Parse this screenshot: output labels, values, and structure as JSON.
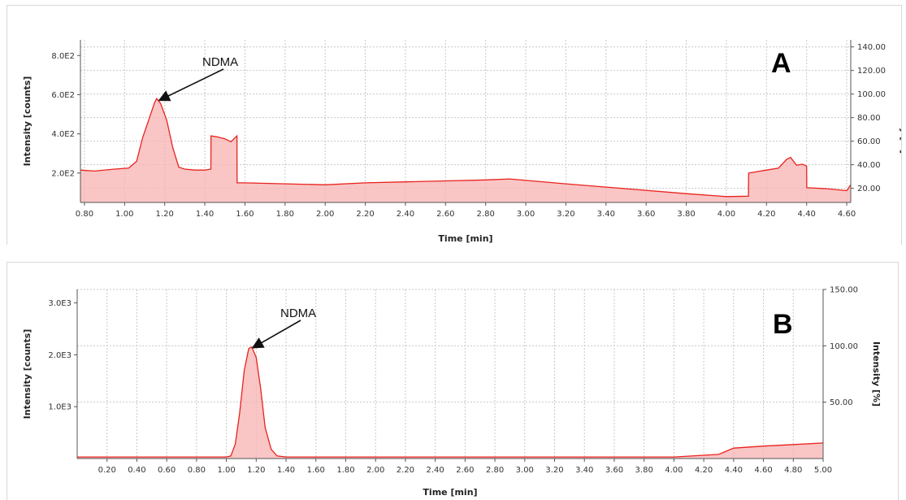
{
  "colors": {
    "trace": "#e8231e",
    "fill": "#f7b2b2",
    "grid": "#c8c8c8",
    "axis": "#555555"
  },
  "chart_data": [
    {
      "type": "area",
      "panel_label": "A",
      "annotation": "NDMA",
      "xlabel": "Time [min]",
      "ylabel_left": "Intensity [counts]",
      "ylabel_right": "Intensity [%]",
      "xlim": [
        0.78,
        4.62
      ],
      "ylim_left": [
        50,
        880
      ],
      "ylim_right": [
        8,
        146
      ],
      "x_ticks": [
        "0.80",
        "1.00",
        "1.20",
        "1.40",
        "1.60",
        "1.80",
        "2.00",
        "2.20",
        "2.40",
        "2.60",
        "2.80",
        "3.00",
        "3.20",
        "3.40",
        "3.60",
        "3.80",
        "4.00",
        "4.20",
        "4.40",
        "4.60"
      ],
      "y_left_ticks": [
        "2.0E2",
        "4.0E2",
        "6.0E2",
        "8.0E2"
      ],
      "y_right_ticks": [
        "20.00",
        "40.00",
        "60.00",
        "80.00",
        "100.00",
        "120.00",
        "140.00"
      ],
      "grid": true,
      "annotation_point": {
        "x": 1.16,
        "y": 575
      },
      "x": [
        0.78,
        0.85,
        0.95,
        1.02,
        1.06,
        1.09,
        1.12,
        1.15,
        1.16,
        1.18,
        1.21,
        1.24,
        1.27,
        1.3,
        1.35,
        1.4,
        1.43,
        1.431,
        1.46,
        1.5,
        1.53,
        1.56,
        1.561,
        1.6,
        1.8,
        2.0,
        2.2,
        2.4,
        2.6,
        2.8,
        2.92,
        3.2,
        3.5,
        3.8,
        4.0,
        4.11,
        4.111,
        4.2,
        4.26,
        4.3,
        4.32,
        4.35,
        4.38,
        4.4,
        4.401,
        4.5,
        4.6,
        4.62
      ],
      "y": [
        215,
        210,
        220,
        225,
        260,
        380,
        470,
        560,
        580,
        555,
        470,
        330,
        230,
        220,
        215,
        215,
        220,
        390,
        385,
        375,
        360,
        390,
        150,
        150,
        145,
        140,
        150,
        155,
        160,
        165,
        170,
        145,
        120,
        95,
        80,
        82,
        200,
        215,
        225,
        270,
        280,
        240,
        245,
        235,
        125,
        120,
        110,
        140
      ]
    },
    {
      "type": "area",
      "panel_label": "B",
      "annotation": "NDMA",
      "xlabel": "Time [min]",
      "ylabel_left": "Intensity [counts]",
      "ylabel_right": "Intensity [%]",
      "xlim": [
        0.0,
        5.0
      ],
      "ylim_left": [
        0,
        3260
      ],
      "ylim_right": [
        0,
        150
      ],
      "x_ticks": [
        "0.20",
        "0.40",
        "0.60",
        "0.80",
        "1.00",
        "1.20",
        "1.40",
        "1.60",
        "1.80",
        "2.00",
        "2.20",
        "2.40",
        "2.60",
        "2.80",
        "3.00",
        "3.20",
        "3.40",
        "3.60",
        "3.80",
        "4.00",
        "4.20",
        "4.40",
        "4.60",
        "4.80",
        "5.00"
      ],
      "y_left_ticks": [
        "1.0E3",
        "2.0E3",
        "3.0E3"
      ],
      "y_right_ticks": [
        "50.00",
        "100.00",
        "150.00"
      ],
      "grid": true,
      "annotation_point": {
        "x": 1.16,
        "y": 2150
      },
      "x": [
        0.0,
        0.5,
        1.0,
        1.03,
        1.06,
        1.09,
        1.12,
        1.15,
        1.17,
        1.2,
        1.23,
        1.26,
        1.3,
        1.34,
        1.4,
        2.0,
        3.0,
        4.0,
        4.3,
        4.4,
        4.6,
        4.8,
        5.0
      ],
      "y": [
        30,
        30,
        30,
        50,
        280,
        900,
        1700,
        2120,
        2150,
        1950,
        1350,
        600,
        180,
        50,
        30,
        30,
        30,
        30,
        80,
        200,
        240,
        270,
        300
      ]
    }
  ]
}
